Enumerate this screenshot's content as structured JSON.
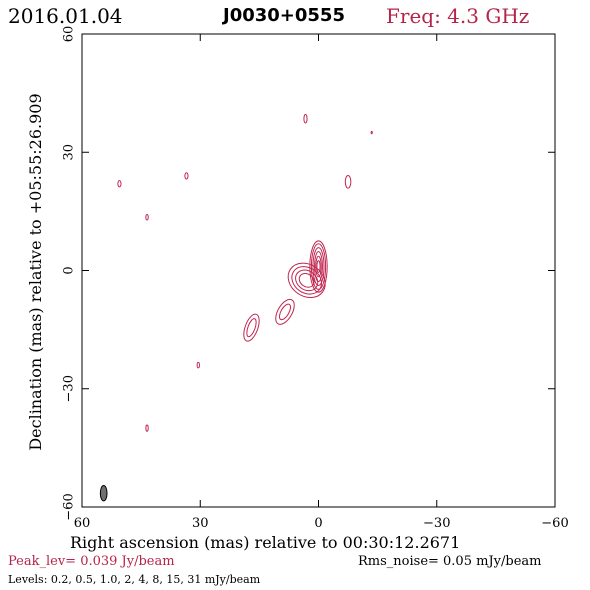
{
  "header": {
    "date": "2016.01.04",
    "source": "J0030+0555",
    "freq": "Freq: 4.3 GHz"
  },
  "footer": {
    "peak": "Peak_lev=  0.039 Jy/beam",
    "rms": "Rms_noise= 0.05 mJy/beam",
    "levels": "Levels: 0.2,  0.5,  1.0,    2,    4,    8,   15,   31 mJy/beam"
  },
  "colors": {
    "contour": "#c0264f",
    "accent_text": "#b5244a",
    "beam": "#707070",
    "axis": "#000000"
  },
  "chart_data": {
    "type": "contour",
    "title": "J0030+0555",
    "xlabel": "Right ascension (mas) relative to 00:30:12.2671",
    "ylabel": "Declination (mas) relative to +05:55:26.909",
    "xlim": [
      60,
      -60
    ],
    "ylim": [
      -60,
      60
    ],
    "xticks": [
      60,
      30,
      0,
      -30,
      -60
    ],
    "yticks": [
      -60,
      -30,
      0,
      30,
      60
    ],
    "xtick_labels": [
      "60",
      "30",
      "0",
      "−30",
      "−60"
    ],
    "ytick_labels": [
      "−60",
      "−30",
      "0",
      "30",
      "60"
    ],
    "levels_mJy_per_beam": [
      0.2,
      0.5,
      1.0,
      2,
      4,
      8,
      15,
      31
    ],
    "peak_Jy_per_beam": 0.039,
    "rms_mJy_per_beam": 0.05,
    "frequency_GHz": 4.3,
    "components": [
      {
        "name": "core",
        "ra": 0.0,
        "dec": 1.0,
        "rings": [
          [
            2.2,
            6.5
          ],
          [
            1.8,
            5.8
          ],
          [
            1.4,
            4.8
          ],
          [
            1.0,
            3.8
          ],
          [
            0.7,
            2.6
          ],
          [
            0.4,
            1.5
          ]
        ],
        "tilt": 0
      },
      {
        "name": "inner-jet",
        "ra": 3.0,
        "dec": -2.5,
        "rings": [
          [
            5.0,
            4.0
          ],
          [
            4.0,
            3.2
          ],
          [
            3.0,
            2.4
          ],
          [
            2.0,
            1.6
          ]
        ],
        "tilt": 35
      },
      {
        "name": "knot-1",
        "ra": 8.5,
        "dec": -10.5,
        "rings": [
          [
            1.8,
            3.5
          ],
          [
            1.0,
            2.2
          ]
        ],
        "tilt": 30
      },
      {
        "name": "knot-2",
        "ra": 17.0,
        "dec": -14.5,
        "rings": [
          [
            1.6,
            3.6
          ],
          [
            0.9,
            2.4
          ]
        ],
        "tilt": 20
      },
      {
        "name": "noise-1",
        "ra": 3.3,
        "dec": 38.5,
        "rings": [
          [
            0.4,
            1.1
          ]
        ],
        "tilt": 0
      },
      {
        "name": "noise-2",
        "ra": -7.5,
        "dec": 22.5,
        "rings": [
          [
            0.7,
            1.6
          ]
        ],
        "tilt": 0
      },
      {
        "name": "noise-3",
        "ra": -13.5,
        "dec": 35.0,
        "rings": [
          [
            0.15,
            0.3
          ]
        ],
        "tilt": 0
      },
      {
        "name": "noise-4",
        "ra": 50.5,
        "dec": 22.0,
        "rings": [
          [
            0.4,
            0.8
          ]
        ],
        "tilt": 0
      },
      {
        "name": "noise-5",
        "ra": 33.5,
        "dec": 24.0,
        "rings": [
          [
            0.4,
            0.8
          ]
        ],
        "tilt": 0
      },
      {
        "name": "noise-6",
        "ra": 43.5,
        "dec": 13.5,
        "rings": [
          [
            0.3,
            0.7
          ]
        ],
        "tilt": 0
      },
      {
        "name": "noise-7",
        "ra": 30.5,
        "dec": -24.0,
        "rings": [
          [
            0.3,
            0.7
          ]
        ],
        "tilt": 0
      },
      {
        "name": "noise-8",
        "ra": 43.5,
        "dec": -40.0,
        "rings": [
          [
            0.3,
            0.8
          ]
        ],
        "tilt": 0
      }
    ],
    "beam": {
      "ra": 54.5,
      "dec": -56.5,
      "major_mas": 3.9,
      "minor_mas": 1.7,
      "pa_deg": 0
    }
  }
}
